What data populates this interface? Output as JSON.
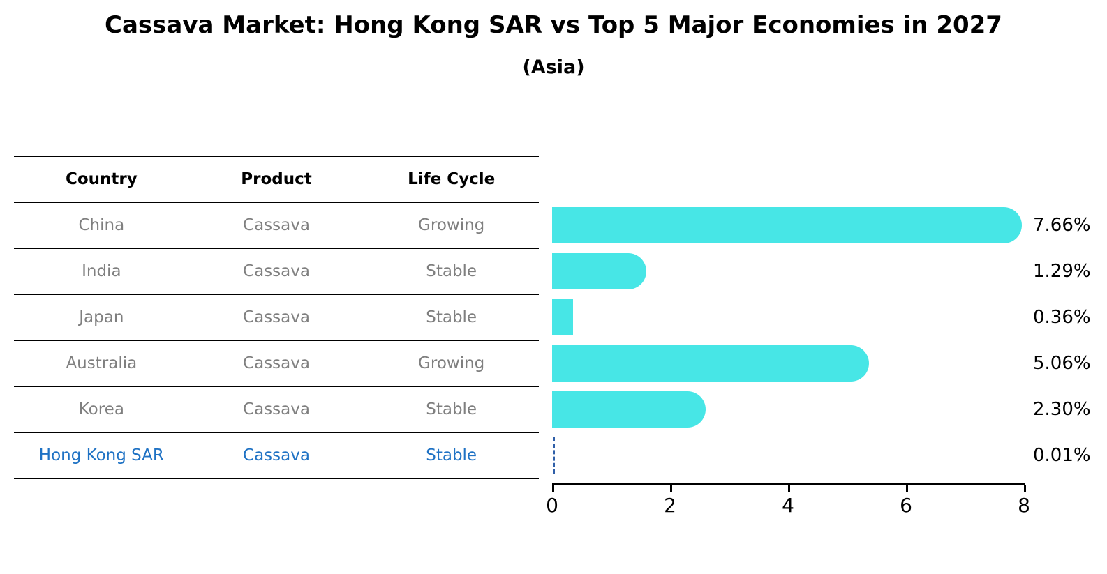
{
  "title": "Cassava Market: Hong Kong SAR vs Top 5 Major Economies in 2027",
  "subtitle": "(Asia)",
  "table": {
    "headers": [
      "Country",
      "Product",
      "Life Cycle"
    ],
    "rows": [
      {
        "country": "China",
        "product": "Cassava",
        "life_cycle": "Growing",
        "highlight": false
      },
      {
        "country": "India",
        "product": "Cassava",
        "life_cycle": "Stable",
        "highlight": false
      },
      {
        "country": "Japan",
        "product": "Cassava",
        "life_cycle": "Stable",
        "highlight": false
      },
      {
        "country": "Australia",
        "product": "Cassava",
        "life_cycle": "Growing",
        "highlight": false
      },
      {
        "country": "Korea",
        "product": "Cassava",
        "life_cycle": "Stable",
        "highlight": false
      },
      {
        "country": "Hong Kong SAR",
        "product": "Cassava",
        "life_cycle": "Stable",
        "highlight": true
      }
    ]
  },
  "chart_data": {
    "type": "bar",
    "orientation": "horizontal",
    "title": "Cassava Market: Hong Kong SAR vs Top 5 Major Economies in 2027",
    "subtitle": "(Asia)",
    "categories": [
      "China",
      "India",
      "Japan",
      "Australia",
      "Korea",
      "Hong Kong SAR"
    ],
    "values": [
      7.66,
      1.29,
      0.36,
      5.06,
      2.3,
      0.01
    ],
    "value_labels": [
      "7.66%",
      "1.29%",
      "0.36%",
      "5.06%",
      "2.30%",
      "0.01%"
    ],
    "xlim": [
      0,
      8
    ],
    "x_ticks": [
      "0",
      "2",
      "4",
      "6",
      "8"
    ],
    "grid": false,
    "legend": false,
    "bar_color": "#47e6e6",
    "highlight_line_color": "#2f5fa8",
    "highlight_text_color": "#1f72c4",
    "muted_text_color": "#7f7f7f"
  }
}
